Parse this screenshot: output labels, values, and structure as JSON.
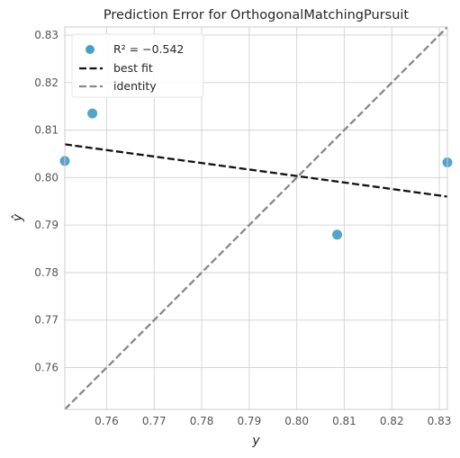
{
  "chart_data": {
    "type": "scatter",
    "title": "Prediction Error for OrthogonalMatchingPursuit",
    "xlabel": "y",
    "ylabel": "ŷ",
    "xlim": [
      0.7512,
      0.8317
    ],
    "ylim": [
      0.7512,
      0.8317
    ],
    "x_ticks": [
      0.76,
      0.77,
      0.78,
      0.79,
      0.8,
      0.81,
      0.82,
      0.83
    ],
    "y_ticks": [
      0.76,
      0.77,
      0.78,
      0.79,
      0.8,
      0.81,
      0.82,
      0.83
    ],
    "grid": true,
    "legend_position": "top-left",
    "points": {
      "x": [
        0.7512,
        0.757,
        0.8085,
        0.8317
      ],
      "y": [
        0.8035,
        0.8135,
        0.788,
        0.8032
      ],
      "color": "#4c9fc4"
    },
    "best_fit": {
      "label": "best fit",
      "x": [
        0.7512,
        0.8317
      ],
      "y": [
        0.807,
        0.796
      ],
      "color": "#111111"
    },
    "identity": {
      "label": "identity",
      "color": "#888888"
    },
    "legend": {
      "r2_label": "R² = −0.542"
    }
  }
}
